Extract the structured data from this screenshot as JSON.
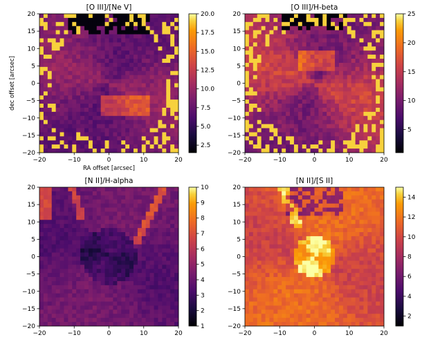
{
  "chart_data": [
    {
      "type": "heatmap",
      "title": "[O III]/[Ne V]",
      "xlabel": "RA offset [arcsec]",
      "ylabel": "dec offset [arcsec]",
      "xlim": [
        -20,
        20
      ],
      "ylim": [
        -20,
        20
      ],
      "x_ticks": [
        "−20",
        "−10",
        "0",
        "10",
        "20"
      ],
      "y_ticks": [
        "20",
        "15",
        "10",
        "5",
        "0",
        "−5",
        "−10",
        "−15",
        "−20"
      ],
      "colormap": "inferno",
      "colorbar_range": [
        1.5,
        20
      ],
      "colorbar_ticks": [
        "20.0",
        "17.5",
        "15.0",
        "12.5",
        "10.0",
        "7.5",
        "5.0",
        "2.5"
      ],
      "colorbar_tick_values": [
        20,
        17.5,
        15,
        12.5,
        10,
        7.5,
        5,
        2.5
      ]
    },
    {
      "type": "heatmap",
      "title": "[O III]/H-beta",
      "xlabel": "",
      "ylabel": "",
      "xlim": [
        -20,
        20
      ],
      "ylim": [
        -20,
        20
      ],
      "x_ticks": [
        "−20",
        "−10",
        "0",
        "10",
        "20"
      ],
      "y_ticks": [
        "20",
        "15",
        "10",
        "5",
        "0",
        "−5",
        "−10",
        "−15",
        "−20"
      ],
      "colormap": "inferno",
      "colorbar_range": [
        1,
        25
      ],
      "colorbar_ticks": [
        "25",
        "20",
        "15",
        "10",
        "5"
      ],
      "colorbar_tick_values": [
        25,
        20,
        15,
        10,
        5
      ]
    },
    {
      "type": "heatmap",
      "title": "[N II]/H-alpha",
      "xlabel": "",
      "ylabel": "",
      "xlim": [
        -20,
        20
      ],
      "ylim": [
        -20,
        20
      ],
      "x_ticks": [
        "−20",
        "−10",
        "0",
        "10",
        "20"
      ],
      "y_ticks": [
        "20",
        "15",
        "10",
        "5",
        "0",
        "−5",
        "−10",
        "−15",
        "−20"
      ],
      "colormap": "inferno",
      "colorbar_range": [
        1,
        10
      ],
      "colorbar_ticks": [
        "10",
        "9",
        "8",
        "7",
        "6",
        "5",
        "4",
        "3",
        "2",
        "1"
      ],
      "colorbar_tick_values": [
        10,
        9,
        8,
        7,
        6,
        5,
        4,
        3,
        2,
        1
      ]
    },
    {
      "type": "heatmap",
      "title": "[N II]/[S II]",
      "xlabel": "",
      "ylabel": "",
      "xlim": [
        -20,
        20
      ],
      "ylim": [
        -20,
        20
      ],
      "x_ticks": [
        "−20",
        "−10",
        "0",
        "10",
        "20"
      ],
      "y_ticks": [
        "20",
        "15",
        "10",
        "5",
        "0",
        "−5",
        "−10",
        "−15",
        "−20"
      ],
      "colormap": "inferno",
      "colorbar_range": [
        1,
        15
      ],
      "colorbar_ticks": [
        "14",
        "12",
        "10",
        "8",
        "6",
        "4",
        "2"
      ],
      "colorbar_tick_values": [
        14,
        12,
        10,
        8,
        6,
        4,
        2
      ]
    }
  ]
}
